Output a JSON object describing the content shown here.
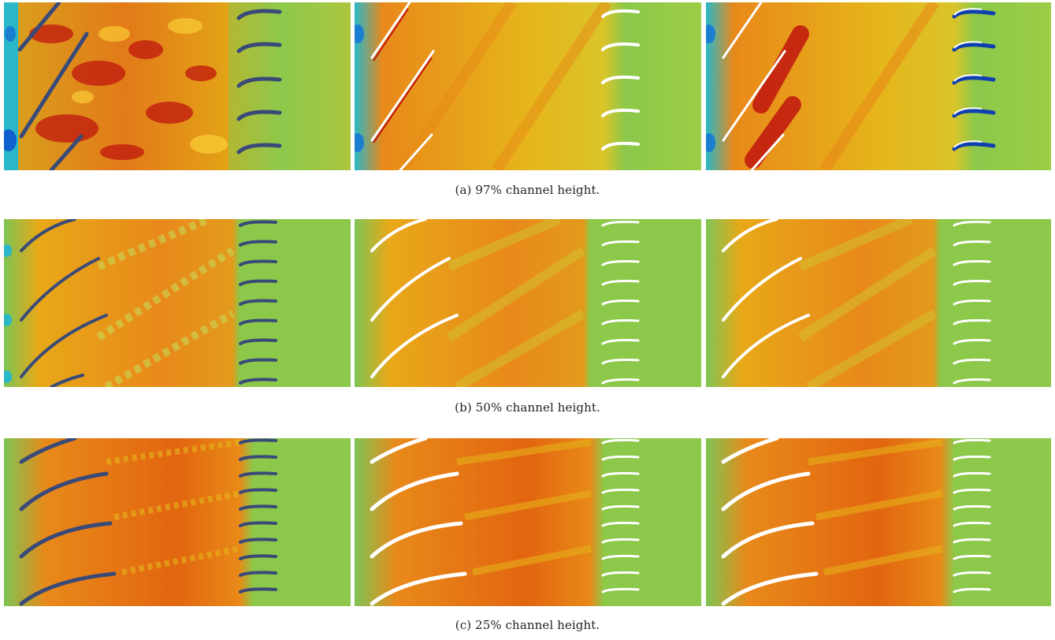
{
  "figure": {
    "rows": [
      {
        "caption_label": "(a)",
        "caption_text": "97% channel height.",
        "panels": [
          "panel-a-left",
          "panel-a-middle",
          "panel-a-right"
        ]
      },
      {
        "caption_label": "(b)",
        "caption_text": "50% channel height.",
        "panels": [
          "panel-b-left",
          "panel-b-middle",
          "panel-b-right"
        ]
      },
      {
        "caption_label": "(c)",
        "caption_text": "25% channel height.",
        "panels": [
          "panel-c-left",
          "panel-c-middle",
          "panel-c-right"
        ]
      }
    ]
  },
  "colors": {
    "background_top": "#e6c21a",
    "background_mid": "#e88a18",
    "background_low": "#e2650f",
    "cyan": "#2ab8c8",
    "blue": "#1060d0",
    "red": "#c0160e",
    "white": "#ffffff",
    "blade_dark": "#3a4a78",
    "green_stator": "#8cc84a"
  }
}
